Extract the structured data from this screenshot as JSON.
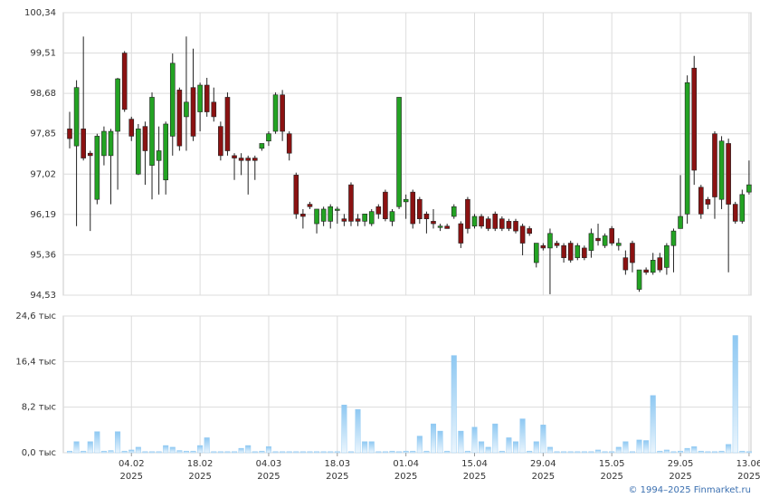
{
  "chart_data": {
    "type": "candlestick",
    "categories": [
      null,
      null,
      null,
      null,
      null,
      null,
      null,
      null,
      null,
      [
        "04.02",
        "2025"
      ],
      null,
      null,
      null,
      null,
      null,
      null,
      null,
      null,
      null,
      [
        "18.02",
        "2025"
      ],
      null,
      null,
      null,
      null,
      null,
      null,
      null,
      null,
      null,
      [
        "04.03",
        "2025"
      ],
      null,
      null,
      null,
      null,
      null,
      null,
      null,
      null,
      null,
      [
        "18.03",
        "2025"
      ],
      null,
      null,
      null,
      null,
      null,
      null,
      null,
      null,
      null,
      [
        "01.04",
        "2025"
      ],
      null,
      null,
      null,
      null,
      null,
      null,
      null,
      null,
      null,
      [
        "15.04",
        "2025"
      ],
      null,
      null,
      null,
      null,
      null,
      null,
      null,
      null,
      null,
      [
        "29.04",
        "2025"
      ],
      null,
      null,
      null,
      null,
      null,
      null,
      null,
      null,
      null,
      [
        "15.05",
        "2025"
      ],
      null,
      null,
      null,
      null,
      null,
      null,
      null,
      null,
      null,
      [
        "29.05",
        "2025"
      ],
      null,
      null,
      null,
      null,
      null,
      null,
      null,
      null,
      null,
      [
        "13.06",
        "2025"
      ]
    ],
    "candles": [
      [
        97.95,
        98.3,
        97.55,
        97.75
      ],
      [
        97.6,
        98.95,
        95.95,
        98.8
      ],
      [
        97.95,
        99.85,
        97.3,
        97.35
      ],
      [
        97.45,
        97.5,
        95.85,
        97.4
      ],
      [
        96.5,
        97.85,
        96.4,
        97.8
      ],
      [
        97.4,
        98.0,
        97.2,
        97.9
      ],
      [
        97.4,
        97.95,
        96.4,
        97.9
      ],
      [
        97.9,
        99.0,
        96.7,
        98.98
      ],
      [
        99.51,
        99.55,
        98.3,
        98.35
      ],
      [
        98.15,
        98.2,
        97.7,
        97.8
      ],
      [
        97.02,
        98.05,
        97.0,
        97.95
      ],
      [
        98.0,
        98.1,
        96.8,
        97.5
      ],
      [
        97.2,
        98.7,
        96.5,
        98.6
      ],
      [
        97.3,
        98.0,
        96.6,
        97.5
      ],
      [
        96.9,
        98.1,
        96.6,
        98.05
      ],
      [
        97.8,
        99.5,
        97.4,
        99.3
      ],
      [
        98.75,
        98.8,
        97.5,
        97.6
      ],
      [
        98.2,
        99.85,
        97.5,
        98.5
      ],
      [
        98.8,
        99.6,
        97.7,
        97.8
      ],
      [
        98.3,
        98.9,
        97.9,
        98.85
      ],
      [
        98.85,
        99.0,
        98.2,
        98.3
      ],
      [
        98.5,
        98.8,
        98.1,
        98.2
      ],
      [
        98.0,
        98.1,
        97.3,
        97.4
      ],
      [
        98.6,
        98.7,
        97.4,
        97.5
      ],
      [
        97.4,
        97.45,
        96.9,
        97.35
      ],
      [
        97.35,
        97.45,
        97.0,
        97.3
      ],
      [
        97.35,
        97.4,
        96.6,
        97.3
      ],
      [
        97.35,
        97.4,
        96.9,
        97.3
      ],
      [
        97.55,
        97.6,
        97.5,
        97.65
      ],
      [
        97.7,
        97.9,
        97.6,
        97.85
      ],
      [
        97.9,
        98.7,
        97.85,
        98.65
      ],
      [
        98.65,
        98.75,
        97.7,
        97.9
      ],
      [
        97.85,
        97.9,
        97.3,
        97.45
      ],
      [
        97.0,
        97.05,
        96.1,
        96.2
      ],
      [
        96.2,
        96.3,
        95.9,
        96.15
      ],
      [
        96.4,
        96.45,
        96.3,
        96.35
      ],
      [
        96.0,
        96.3,
        95.8,
        96.3
      ],
      [
        96.05,
        96.35,
        95.95,
        96.3
      ],
      [
        96.05,
        96.4,
        95.9,
        96.35
      ],
      [
        96.3,
        96.35,
        96.0,
        96.3
      ],
      [
        96.1,
        96.2,
        95.95,
        96.05
      ],
      [
        96.8,
        96.85,
        95.95,
        96.05
      ],
      [
        96.1,
        96.2,
        95.95,
        96.05
      ],
      [
        96.05,
        96.2,
        95.95,
        96.2
      ],
      [
        96.0,
        96.3,
        95.95,
        96.25
      ],
      [
        96.35,
        96.4,
        96.1,
        96.2
      ],
      [
        96.65,
        96.7,
        96.05,
        96.1
      ],
      [
        96.05,
        96.3,
        95.95,
        96.25
      ],
      [
        96.35,
        98.6,
        96.3,
        98.6
      ],
      [
        96.45,
        96.6,
        96.1,
        96.5
      ],
      [
        96.65,
        96.7,
        95.9,
        96.0
      ],
      [
        96.5,
        96.55,
        96.0,
        96.1
      ],
      [
        96.2,
        96.25,
        95.8,
        96.1
      ],
      [
        96.05,
        96.3,
        95.9,
        96.0
      ],
      [
        95.95,
        96.0,
        95.85,
        95.95
      ],
      [
        95.95,
        96.0,
        95.9,
        95.9
      ],
      [
        96.15,
        96.4,
        96.1,
        96.35
      ],
      [
        96.0,
        96.05,
        95.5,
        95.6
      ],
      [
        96.5,
        96.55,
        95.8,
        95.9
      ],
      [
        95.95,
        96.2,
        95.9,
        96.15
      ],
      [
        96.15,
        96.2,
        95.9,
        95.95
      ],
      [
        96.1,
        96.15,
        95.85,
        95.9
      ],
      [
        96.2,
        96.25,
        95.85,
        95.9
      ],
      [
        96.1,
        96.15,
        95.85,
        95.9
      ],
      [
        96.05,
        96.1,
        95.85,
        95.9
      ],
      [
        96.05,
        96.1,
        95.8,
        95.85
      ],
      [
        95.95,
        96.0,
        95.35,
        95.6
      ],
      [
        95.9,
        95.95,
        95.75,
        95.8
      ],
      [
        95.2,
        95.6,
        95.1,
        95.6
      ],
      [
        95.55,
        95.6,
        95.45,
        95.5
      ],
      [
        95.5,
        95.9,
        94.55,
        95.8
      ],
      [
        95.6,
        95.65,
        95.5,
        95.55
      ],
      [
        95.55,
        95.6,
        95.2,
        95.3
      ],
      [
        95.6,
        95.65,
        95.2,
        95.25
      ],
      [
        95.3,
        95.6,
        95.25,
        95.55
      ],
      [
        95.5,
        95.55,
        95.25,
        95.3
      ],
      [
        95.45,
        95.9,
        95.3,
        95.8
      ],
      [
        95.7,
        96.0,
        95.55,
        95.65
      ],
      [
        95.55,
        95.8,
        95.5,
        95.75
      ],
      [
        95.9,
        95.95,
        95.55,
        95.6
      ],
      [
        95.55,
        95.7,
        95.45,
        95.6
      ],
      [
        95.3,
        95.45,
        94.95,
        95.05
      ],
      [
        95.6,
        95.65,
        95.0,
        95.2
      ],
      [
        94.65,
        95.05,
        94.6,
        95.05
      ],
      [
        95.05,
        95.1,
        94.95,
        95.0
      ],
      [
        95.0,
        95.4,
        94.95,
        95.25
      ],
      [
        95.3,
        95.4,
        95.0,
        95.05
      ],
      [
        95.1,
        95.6,
        94.95,
        95.55
      ],
      [
        95.55,
        95.9,
        95.0,
        95.85
      ],
      [
        95.9,
        97.0,
        95.9,
        96.15
      ],
      [
        96.2,
        99.05,
        96.0,
        98.9
      ],
      [
        99.2,
        99.45,
        96.8,
        97.1
      ],
      [
        96.75,
        96.8,
        96.1,
        96.2
      ],
      [
        96.5,
        96.55,
        96.3,
        96.4
      ],
      [
        97.85,
        97.9,
        96.1,
        96.55
      ],
      [
        96.5,
        97.8,
        96.3,
        97.7
      ],
      [
        97.65,
        97.75,
        95.0,
        96.4
      ],
      [
        96.4,
        96.45,
        96.0,
        96.05
      ],
      [
        96.05,
        96.7,
        96.0,
        96.6
      ],
      [
        96.65,
        97.3,
        96.6,
        96.8
      ]
    ],
    "up_color": "#23a323",
    "down_color": "#8b1212",
    "ylim": [
      94.53,
      100.34
    ],
    "yticks": [
      {
        "value": 94.53,
        "label": "94,53"
      },
      {
        "value": 95.36,
        "label": "95,36"
      },
      {
        "value": 96.19,
        "label": "96,19"
      },
      {
        "value": 97.02,
        "label": "97,02"
      },
      {
        "value": 97.85,
        "label": "97,85"
      },
      {
        "value": 98.68,
        "label": "98,68"
      },
      {
        "value": 99.51,
        "label": "99,51"
      },
      {
        "value": 100.34,
        "label": "100,34"
      }
    ],
    "grid": true,
    "volume": {
      "color": "#8ec8f2",
      "values": [
        0.3,
        2.0,
        0.3,
        2.0,
        3.8,
        0.3,
        0.4,
        3.8,
        0.3,
        0.5,
        1.0,
        0.2,
        0.2,
        0.2,
        1.3,
        1.0,
        0.4,
        0.3,
        0.3,
        1.3,
        2.7,
        0.2,
        0.2,
        0.2,
        0.2,
        0.8,
        1.3,
        0.2,
        0.3,
        1.1,
        0.2,
        0.2,
        0.2,
        0.2,
        0.2,
        0.2,
        0.2,
        0.2,
        0.2,
        0.2,
        8.6,
        0.2,
        7.8,
        2.0,
        2.0,
        0.2,
        0.2,
        0.3,
        0.2,
        0.3,
        0.3,
        3.0,
        0.3,
        5.2,
        3.9,
        0.3,
        17.5,
        3.9,
        0.3,
        4.6,
        2.0,
        1.0,
        5.2,
        0.3,
        2.7,
        2.0,
        6.1,
        0.3,
        2.0,
        5.0,
        1.0,
        0.2,
        0.2,
        0.2,
        0.2,
        0.2,
        0.2,
        0.5,
        0.2,
        0.2,
        1.0,
        2.0,
        0.2,
        2.3,
        2.2,
        10.3,
        0.3,
        0.5,
        0.2,
        0.3,
        0.8,
        1.1,
        0.3,
        0.2,
        0.2,
        0.3,
        1.5,
        21.1,
        0.3,
        0.2
      ],
      "ylim": [
        0,
        24.6
      ],
      "yticks": [
        {
          "value": 0,
          "label": "0,0 тыс"
        },
        {
          "value": 8.2,
          "label": "8,2 тыс"
        },
        {
          "value": 16.4,
          "label": "16,4 тыс"
        },
        {
          "value": 24.6,
          "label": "24,6 тыс"
        }
      ]
    }
  },
  "footer": "© 1994–2025 Finmarket.ru"
}
